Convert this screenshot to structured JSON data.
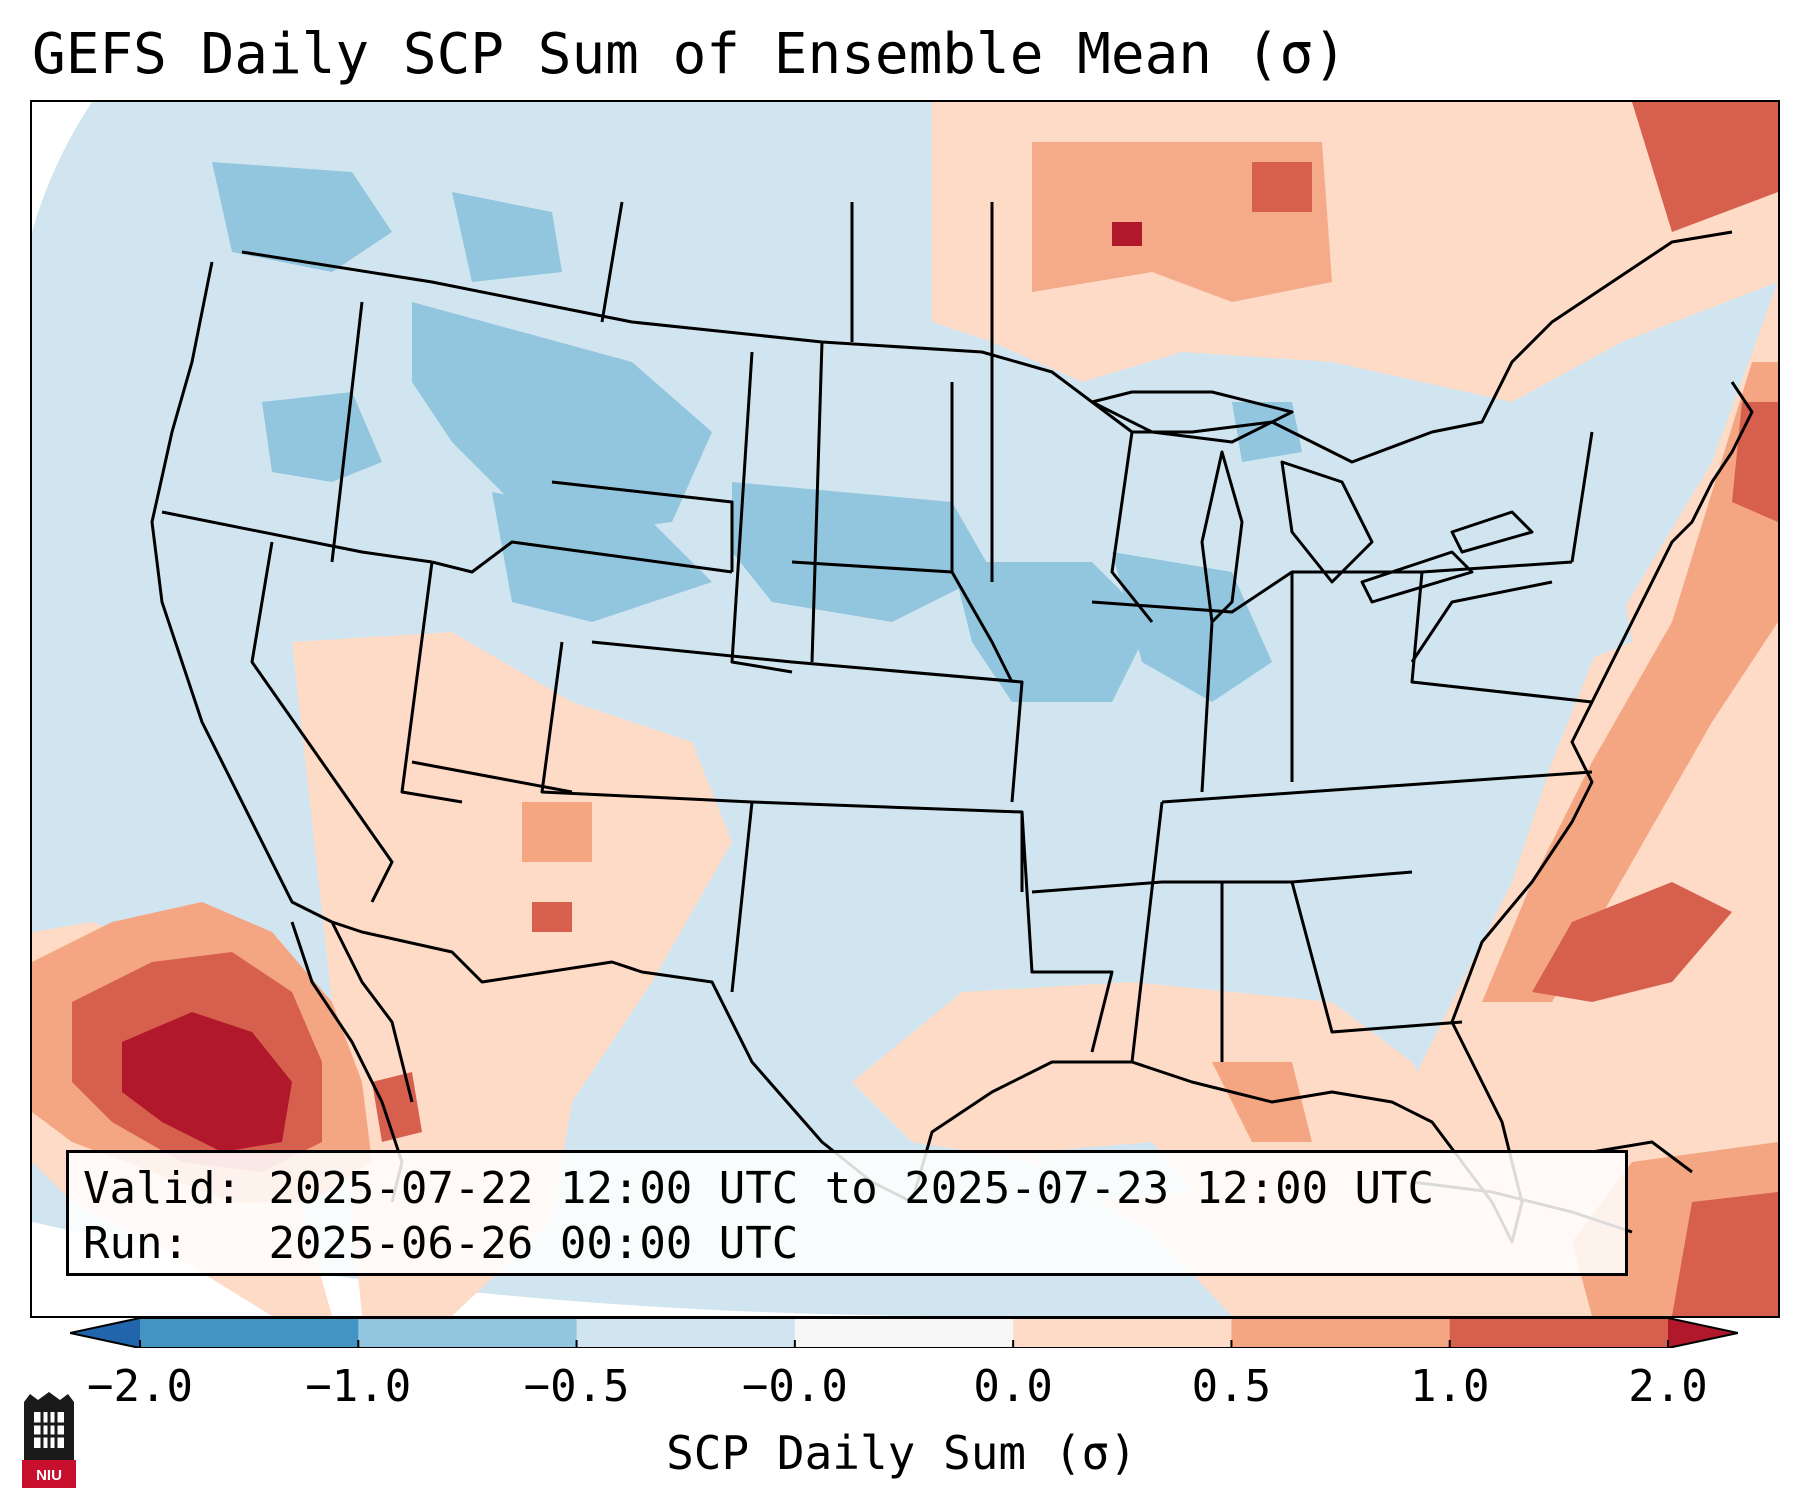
{
  "title": "GEFS Daily SCP Sum of Ensemble Mean (σ)",
  "map": {
    "region": "Contiguous United States",
    "highlighted_areas": [
      {
        "name": "eastern-pacific-maximum",
        "category": 2.0
      },
      {
        "name": "western-atlantic-band",
        "category": 1.0
      },
      {
        "name": "ontario-quebec",
        "category": 1.0
      },
      {
        "name": "gulf-coast",
        "category": 0.5
      },
      {
        "name": "caribbean",
        "category": 1.0
      },
      {
        "name": "northern-plains-minimum",
        "category": -1.0
      },
      {
        "name": "midwest-minimum",
        "category": -1.0
      },
      {
        "name": "northern-rockies-minimum",
        "category": -1.0
      }
    ]
  },
  "info": {
    "valid_label": "Valid:",
    "valid_value": "2025-07-22 12:00 UTC to 2025-07-23 12:00 UTC",
    "run_label": "Run:",
    "run_value": "2025-06-26 00:00 UTC"
  },
  "colorbar": {
    "label": "SCP Daily Sum (σ)",
    "ticks": [
      "−2.0",
      "−1.0",
      "−0.5",
      "−0.0",
      "0.0",
      "0.5",
      "1.0",
      "2.0"
    ],
    "colors": [
      "#2166ac",
      "#4393c3",
      "#92c5de",
      "#d1e5f0",
      "#f7f7f7",
      "#fddbc7",
      "#f4a582",
      "#d6604d",
      "#b2182b"
    ]
  },
  "chart_data": {
    "type": "heatmap",
    "title": "GEFS Daily SCP Sum of Ensemble Mean (σ)",
    "colorbar_label": "SCP Daily Sum (σ)",
    "levels": [
      -2.0,
      -1.0,
      -0.5,
      -0.0,
      0.0,
      0.5,
      1.0,
      2.0
    ],
    "extend": "both",
    "region_values": [
      {
        "region": "Eastern Pacific off Baja California",
        "value": 2.0
      },
      {
        "region": "Western Atlantic offshore",
        "value": 1.0
      },
      {
        "region": "Ontario / Quebec",
        "value": 1.0
      },
      {
        "region": "Caribbean",
        "value": 1.0
      },
      {
        "region": "Gulf Coast",
        "value": 0.5
      },
      {
        "region": "Desert Southwest",
        "value": 0.5
      },
      {
        "region": "Northern Plains",
        "value": -1.0
      },
      {
        "region": "Upper Midwest",
        "value": -1.0
      },
      {
        "region": "Northern Rockies",
        "value": -1.0
      },
      {
        "region": "Texas / Southern Plains",
        "value": -0.5
      }
    ]
  },
  "logo": {
    "text": "NIU"
  }
}
